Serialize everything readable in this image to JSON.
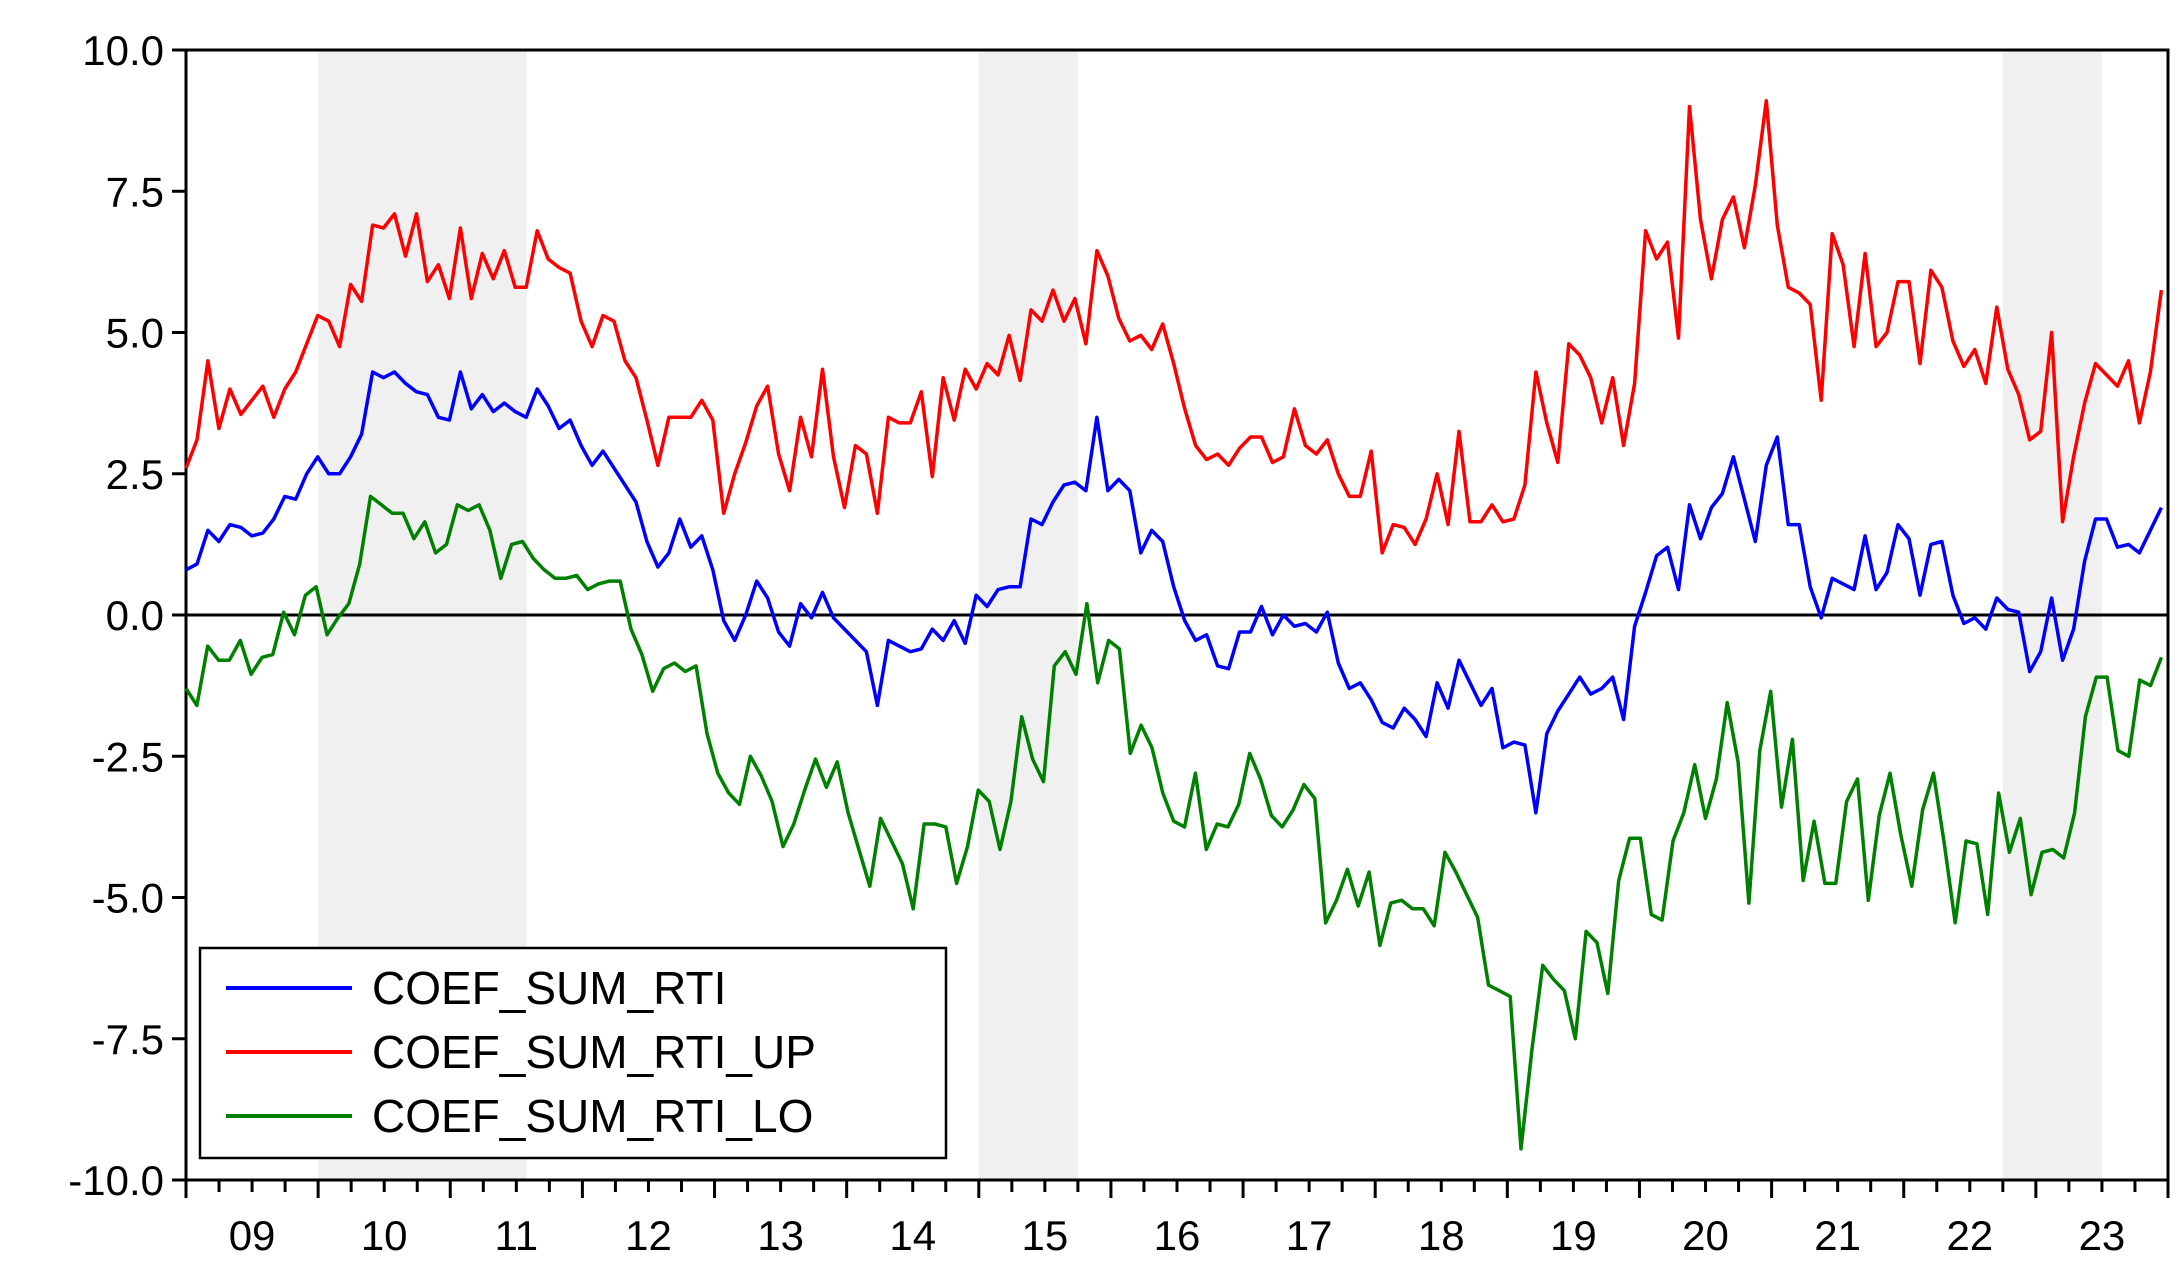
{
  "chart_data": {
    "type": "line",
    "title": "",
    "xlabel": "",
    "ylabel": "",
    "ylim": [
      -10.0,
      10.0
    ],
    "yticks": [
      "10.0",
      "7.5",
      "5.0",
      "2.5",
      "0.0",
      "-2.5",
      "-5.0",
      "-7.5",
      "-10.0"
    ],
    "ytick_values": [
      10,
      7.5,
      5,
      2.5,
      0,
      -2.5,
      -5,
      -7.5,
      -10
    ],
    "x_start_year": 2009,
    "x_end_year": 2023,
    "x_year_labels": [
      "09",
      "10",
      "11",
      "12",
      "13",
      "14",
      "15",
      "16",
      "17",
      "18",
      "19",
      "20",
      "21",
      "22",
      "23"
    ],
    "zero_line": true,
    "shaded_periods": [
      {
        "start": 2010.0,
        "end": 2011.58
      },
      {
        "start": 2015.0,
        "end": 2015.75
      },
      {
        "start": 2022.75,
        "end": 2023.5
      }
    ],
    "shade_color": "#f0f0f0",
    "legend_position": "bottom-left",
    "series": [
      {
        "name": "COEF_SUM_RTI",
        "color": "#0000ff",
        "values": [
          0.8,
          0.9,
          1.5,
          1.3,
          1.6,
          1.55,
          1.4,
          1.45,
          1.7,
          2.1,
          2.05,
          2.5,
          2.8,
          2.5,
          2.5,
          2.8,
          3.2,
          4.3,
          4.2,
          4.3,
          4.1,
          3.95,
          3.9,
          3.5,
          3.45,
          4.3,
          3.65,
          3.9,
          3.6,
          3.75,
          3.6,
          3.5,
          4.0,
          3.7,
          3.3,
          3.45,
          3.0,
          2.65,
          2.9,
          2.6,
          2.3,
          2.0,
          1.3,
          0.85,
          1.1,
          1.7,
          1.2,
          1.4,
          0.8,
          -0.1,
          -0.45,
          0.0,
          0.6,
          0.3,
          -0.3,
          -0.55,
          0.2,
          -0.05,
          0.4,
          -0.05,
          -0.25,
          -0.45,
          -0.65,
          -1.6,
          -0.45,
          -0.55,
          -0.65,
          -0.6,
          -0.25,
          -0.45,
          -0.1,
          -0.5,
          0.35,
          0.15,
          0.45,
          0.5,
          0.5,
          1.7,
          1.6,
          2.0,
          2.3,
          2.35,
          2.2,
          3.5,
          2.2,
          2.4,
          2.2,
          1.1,
          1.5,
          1.3,
          0.5,
          -0.1,
          -0.45,
          -0.35,
          -0.9,
          -0.95,
          -0.3,
          -0.3,
          0.15,
          -0.35,
          0.0,
          -0.2,
          -0.15,
          -0.3,
          0.05,
          -0.85,
          -1.3,
          -1.2,
          -1.5,
          -1.9,
          -2.0,
          -1.65,
          -1.85,
          -2.15,
          -1.2,
          -1.65,
          -0.8,
          -1.2,
          -1.6,
          -1.3,
          -2.35,
          -2.25,
          -2.3,
          -3.5,
          -2.1,
          -1.7,
          -1.4,
          -1.1,
          -1.4,
          -1.3,
          -1.1,
          -1.85,
          -0.2,
          0.4,
          1.05,
          1.2,
          0.45,
          1.95,
          1.35,
          1.9,
          2.15,
          2.8,
          2.05,
          1.3,
          2.65,
          3.15,
          1.6,
          1.6,
          0.5,
          -0.05,
          0.65,
          0.55,
          0.45,
          1.4,
          0.45,
          0.75,
          1.6,
          1.35,
          0.35,
          1.25,
          1.3,
          0.35,
          -0.15,
          -0.05,
          -0.25,
          0.3,
          0.1,
          0.05,
          -1.0,
          -0.65,
          0.3,
          -0.8,
          -0.25,
          0.95,
          1.7,
          1.7,
          1.2,
          1.25,
          1.1,
          1.5,
          1.9
        ]
      },
      {
        "name": "COEF_SUM_RTI_UP",
        "color": "#ff0000",
        "values": [
          2.6,
          3.1,
          4.5,
          3.3,
          4.0,
          3.55,
          3.8,
          4.05,
          3.5,
          4.0,
          4.3,
          4.8,
          5.3,
          5.2,
          4.75,
          5.85,
          5.55,
          6.9,
          6.85,
          7.1,
          6.35,
          7.1,
          5.9,
          6.2,
          5.6,
          6.85,
          5.6,
          6.4,
          5.95,
          6.45,
          5.8,
          5.8,
          6.8,
          6.3,
          6.15,
          6.05,
          5.2,
          4.75,
          5.3,
          5.2,
          4.5,
          4.2,
          3.45,
          2.65,
          3.5,
          3.5,
          3.5,
          3.8,
          3.45,
          1.8,
          2.5,
          3.05,
          3.7,
          4.05,
          2.85,
          2.2,
          3.5,
          2.8,
          4.35,
          2.8,
          1.9,
          3.0,
          2.85,
          1.8,
          3.5,
          3.4,
          3.4,
          3.95,
          2.45,
          4.2,
          3.45,
          4.35,
          4.0,
          4.45,
          4.25,
          4.95,
          4.15,
          5.4,
          5.2,
          5.75,
          5.2,
          5.6,
          4.8,
          6.45,
          6.0,
          5.25,
          4.85,
          4.95,
          4.7,
          5.15,
          4.45,
          3.65,
          3.0,
          2.75,
          2.85,
          2.65,
          2.95,
          3.15,
          3.15,
          2.7,
          2.8,
          3.65,
          3.0,
          2.85,
          3.1,
          2.5,
          2.1,
          2.1,
          2.9,
          1.1,
          1.6,
          1.55,
          1.25,
          1.7,
          2.5,
          1.6,
          3.25,
          1.65,
          1.65,
          1.95,
          1.65,
          1.7,
          2.3,
          4.3,
          3.4,
          2.7,
          4.8,
          4.6,
          4.2,
          3.4,
          4.2,
          3.0,
          4.1,
          6.8,
          6.3,
          6.6,
          4.9,
          9.0,
          7.0,
          5.95,
          7.0,
          7.4,
          6.5,
          7.6,
          9.1,
          6.9,
          5.8,
          5.7,
          5.5,
          3.8,
          6.75,
          6.2,
          4.75,
          6.4,
          4.75,
          5.0,
          5.9,
          5.9,
          4.45,
          6.1,
          5.8,
          4.85,
          4.4,
          4.7,
          4.1,
          5.45,
          4.35,
          3.9,
          3.1,
          3.25,
          5.0,
          1.65,
          2.8,
          3.75,
          4.45,
          4.25,
          4.05,
          4.5,
          3.4,
          4.3,
          5.75
        ]
      },
      {
        "name": "COEF_SUM_RTI_LO",
        "color": "#008000",
        "values": [
          -1.3,
          -1.6,
          -0.55,
          -0.8,
          -0.8,
          -0.45,
          -1.05,
          -0.75,
          -0.7,
          0.05,
          -0.35,
          0.35,
          0.5,
          -0.35,
          -0.05,
          0.2,
          0.9,
          2.1,
          1.95,
          1.8,
          1.8,
          1.35,
          1.65,
          1.1,
          1.25,
          1.95,
          1.85,
          1.95,
          1.5,
          0.65,
          1.25,
          1.3,
          1.0,
          0.8,
          0.65,
          0.65,
          0.7,
          0.45,
          0.55,
          0.6,
          0.6,
          -0.25,
          -0.7,
          -1.35,
          -0.95,
          -0.85,
          -1.0,
          -0.9,
          -2.1,
          -2.8,
          -3.15,
          -3.35,
          -2.5,
          -2.85,
          -3.3,
          -4.1,
          -3.7,
          -3.1,
          -2.55,
          -3.05,
          -2.6,
          -3.5,
          -4.15,
          -4.8,
          -3.6,
          -4.0,
          -4.4,
          -5.2,
          -3.7,
          -3.7,
          -3.75,
          -4.75,
          -4.1,
          -3.1,
          -3.3,
          -4.15,
          -3.3,
          -1.8,
          -2.55,
          -2.95,
          -0.9,
          -0.65,
          -1.05,
          0.2,
          -1.2,
          -0.45,
          -0.6,
          -2.45,
          -1.95,
          -2.35,
          -3.15,
          -3.65,
          -3.75,
          -2.8,
          -4.15,
          -3.7,
          -3.75,
          -3.35,
          -2.45,
          -2.9,
          -3.55,
          -3.75,
          -3.45,
          -3.0,
          -3.25,
          -5.45,
          -5.05,
          -4.5,
          -5.15,
          -4.55,
          -5.85,
          -5.1,
          -5.05,
          -5.2,
          -5.2,
          -5.5,
          -4.2,
          -4.55,
          -4.95,
          -5.35,
          -6.55,
          -6.65,
          -6.75,
          -9.45,
          -7.7,
          -6.2,
          -6.45,
          -6.65,
          -7.5,
          -5.6,
          -5.8,
          -6.7,
          -4.7,
          -3.95,
          -3.95,
          -5.3,
          -5.4,
          -4.0,
          -3.5,
          -2.65,
          -3.6,
          -2.9,
          -1.55,
          -2.6,
          -5.1,
          -2.4,
          -1.35,
          -3.4,
          -2.2,
          -4.7,
          -3.65,
          -4.75,
          -4.75,
          -3.3,
          -2.9,
          -5.05,
          -3.55,
          -2.8,
          -3.9,
          -4.8,
          -3.45,
          -2.8,
          -4.05,
          -5.45,
          -4.0,
          -4.05,
          -5.3,
          -3.15,
          -4.2,
          -3.6,
          -4.95,
          -4.2,
          -4.15,
          -4.3,
          -3.5,
          -1.8,
          -1.1,
          -1.1,
          -2.4,
          -2.5,
          -1.15,
          -1.25,
          -0.75
        ]
      }
    ]
  }
}
